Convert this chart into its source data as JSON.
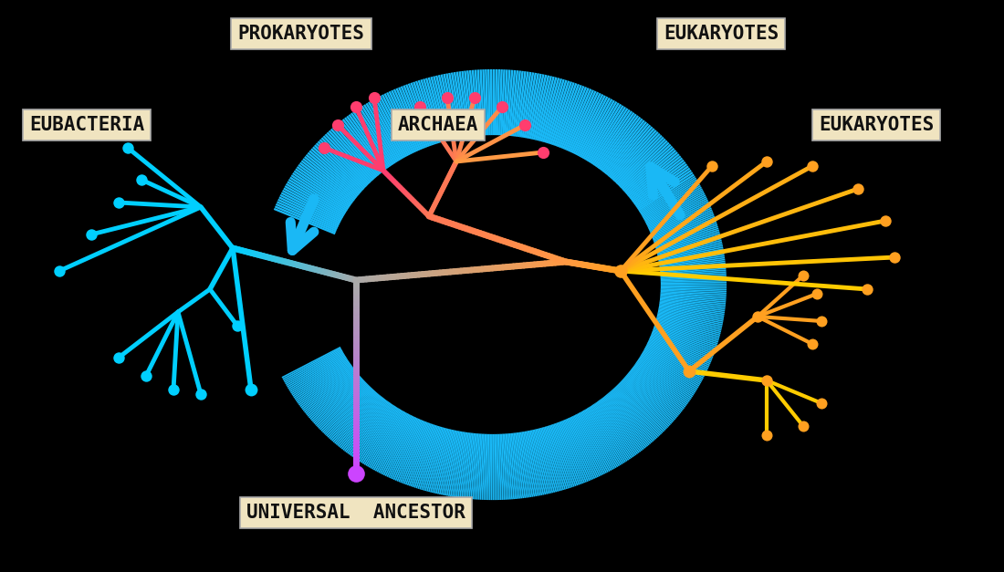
{
  "background_color": "#000000",
  "labels": {
    "prokaryotes": "PROKARYOTES",
    "eukaryotes_top": "EUKARYOTES",
    "eubacteria": "EUBACTERIA",
    "archaea": "ARCHAEA",
    "eukaryotes_right": "EUKARYOTES",
    "universal_ancestor": "UNIVERSAL  ANCESTOR"
  },
  "label_box_color": "#f0e4c0",
  "blue_arrow_color": "#1ab8f5",
  "colors": {
    "ancestor_purple": "#cc44ff",
    "stem_gray": "#aaaaaa",
    "bacteria_cyan": "#00cfff",
    "archaea_pink": "#ff3d6e",
    "archaea_salmon": "#ff7755",
    "archaea_orange": "#ff9944",
    "eukaryote_orange": "#ffa020",
    "eukaryote_yellow": "#ffcc00"
  }
}
